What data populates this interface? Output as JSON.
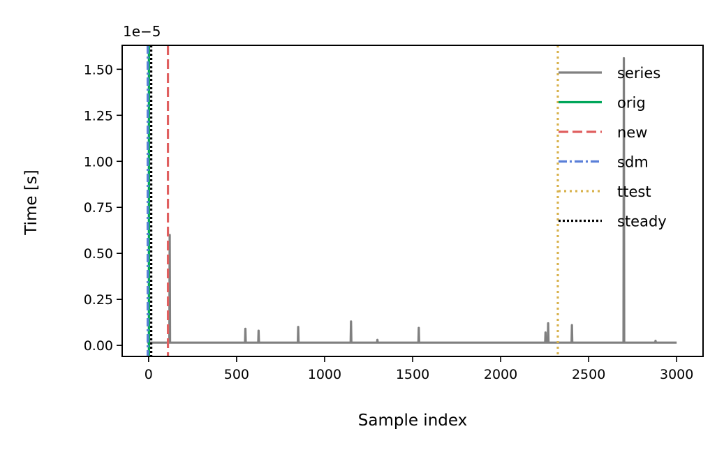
{
  "chart_data": {
    "type": "line",
    "title": "",
    "xlabel": "Sample index",
    "ylabel": "Time [s]",
    "y_offset_label": "1e−5",
    "xlim": [
      -150,
      3150
    ],
    "ylim": [
      -0.06,
      1.63
    ],
    "x_ticks": [
      0,
      500,
      1000,
      1500,
      2000,
      2500,
      3000
    ],
    "x_tick_labels": [
      "0",
      "500",
      "1000",
      "1500",
      "2000",
      "2500",
      "3000"
    ],
    "y_ticks": [
      0.0,
      0.25,
      0.5,
      0.75,
      1.0,
      1.25,
      1.5
    ],
    "y_tick_labels": [
      "0.00",
      "0.25",
      "0.50",
      "0.75",
      "1.00",
      "1.25",
      "1.50"
    ],
    "grid": false,
    "legend_position": "top-right",
    "series_line": {
      "name": "series",
      "color": "#808080",
      "baseline": 0.015,
      "x_range": [
        0,
        3000
      ],
      "spikes": [
        {
          "x": 0,
          "y": 0.05
        },
        {
          "x": 120,
          "y": 0.6
        },
        {
          "x": 550,
          "y": 0.09
        },
        {
          "x": 625,
          "y": 0.08
        },
        {
          "x": 850,
          "y": 0.1
        },
        {
          "x": 1150,
          "y": 0.13
        },
        {
          "x": 1300,
          "y": 0.03
        },
        {
          "x": 1535,
          "y": 0.095
        },
        {
          "x": 2255,
          "y": 0.07
        },
        {
          "x": 2270,
          "y": 0.12
        },
        {
          "x": 2405,
          "y": 0.11
        },
        {
          "x": 2700,
          "y": 1.56
        },
        {
          "x": 2880,
          "y": 0.025
        }
      ]
    },
    "markers": [
      {
        "name": "orig",
        "x": 2,
        "color": "#00a65a",
        "style": "solid"
      },
      {
        "name": "new",
        "x": 110,
        "color": "#e06060",
        "style": "dashed"
      },
      {
        "name": "sdm",
        "x": -5,
        "color": "#5a7fd8",
        "style": "dashdot"
      },
      {
        "name": "ttest",
        "x": 2325,
        "color": "#d8b24c",
        "style": "dotted"
      },
      {
        "name": "steady",
        "x": 15,
        "color": "#000000",
        "style": "densedot"
      }
    ],
    "legend": [
      {
        "name": "series",
        "color": "#808080",
        "style": "solid"
      },
      {
        "name": "orig",
        "color": "#00a65a",
        "style": "solid"
      },
      {
        "name": "new",
        "color": "#e06060",
        "style": "dashed"
      },
      {
        "name": "sdm",
        "color": "#5a7fd8",
        "style": "dashdot"
      },
      {
        "name": "ttest",
        "color": "#d8b24c",
        "style": "dotted"
      },
      {
        "name": "steady",
        "color": "#000000",
        "style": "densedot"
      }
    ]
  }
}
